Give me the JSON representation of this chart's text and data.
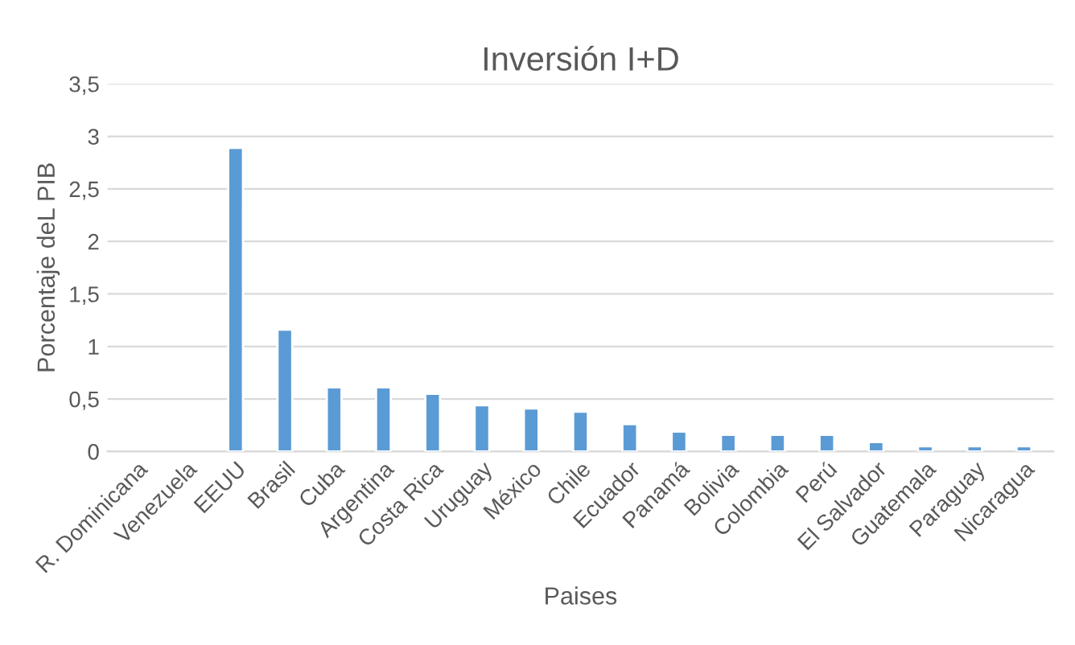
{
  "chart_data": {
    "type": "bar",
    "title": "Inversión I+D",
    "xlabel": "Paises",
    "ylabel": "Porcentaje deL PIB",
    "categories": [
      "R. Dominicana",
      "Venezuela",
      "EEUU",
      "Brasil",
      "Cuba",
      "Argentina",
      "Costa Rica",
      "Uruguay",
      "México",
      "Chile",
      "Ecuador",
      "Panamá",
      "Bolivia",
      "Colombia",
      "Perú",
      "El Salvador",
      "Guatemala",
      "Paraguay",
      "Nicaragua"
    ],
    "values": [
      null,
      null,
      2.89,
      1.16,
      0.61,
      0.61,
      0.55,
      0.44,
      0.41,
      0.38,
      0.26,
      0.19,
      0.16,
      0.16,
      0.16,
      0.09,
      0.05,
      0.05,
      0.05
    ],
    "color": "#5b9bd5",
    "ylim": [
      0,
      3.5
    ],
    "yticks": [
      0,
      {
        "value": 0.5,
        "label": "0,5"
      },
      1,
      {
        "value": 1.5,
        "label": "1,5"
      },
      2,
      {
        "value": 2.5,
        "label": "2,5"
      },
      3,
      {
        "value": 3.5,
        "label": "3,5"
      }
    ],
    "grid": "y",
    "legend": false
  }
}
